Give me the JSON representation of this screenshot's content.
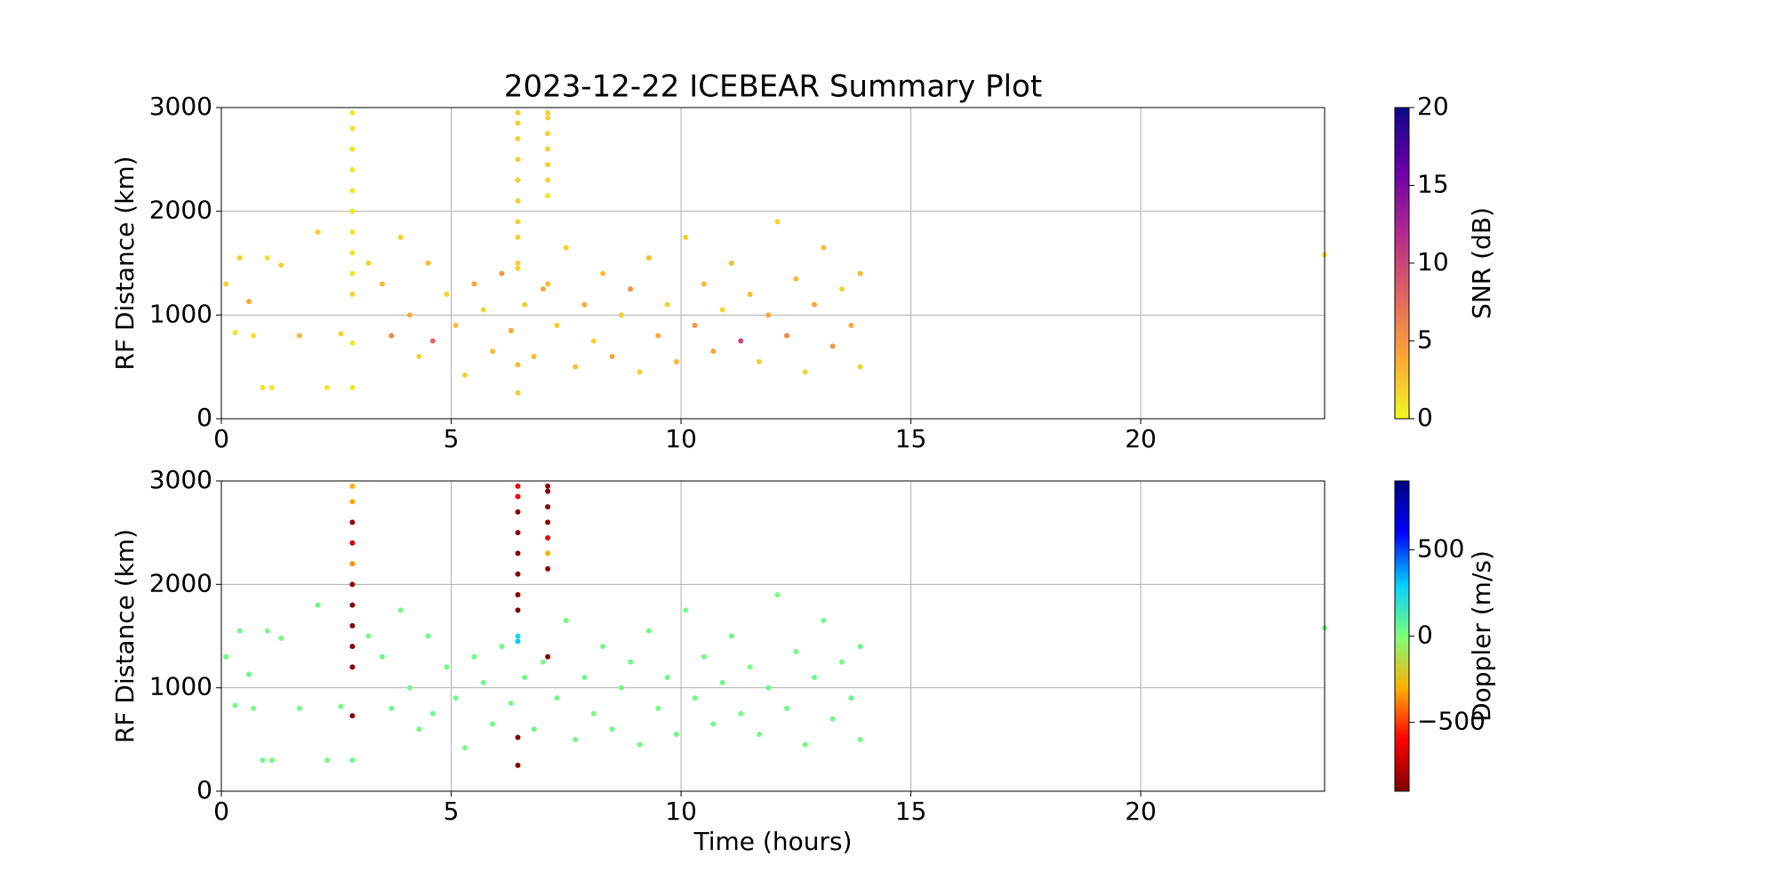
{
  "chart_data": [
    {
      "type": "scatter",
      "title": "2023-12-22 ICEBEAR Summary Plot",
      "y_label": "RF Distance (km)",
      "colorbar_label": "SNR (dB)",
      "x": [
        2.85,
        2.85,
        2.85,
        2.85,
        2.85,
        2.85,
        2.85,
        2.85,
        2.85,
        2.85,
        2.85,
        2.85,
        6.45,
        6.45,
        6.45,
        6.45,
        6.45,
        6.45,
        6.45,
        6.45,
        6.45,
        6.45,
        6.45,
        6.45,
        7.1,
        7.1,
        7.1,
        7.1,
        7.1,
        7.1,
        7.1,
        7.1,
        0.1,
        0.3,
        0.4,
        0.6,
        0.7,
        0.9,
        1.0,
        1.1,
        1.3,
        1.7,
        2.1,
        2.3,
        2.6,
        3.2,
        3.5,
        3.7,
        3.9,
        4.1,
        4.3,
        4.5,
        4.6,
        4.9,
        5.1,
        5.3,
        5.5,
        5.7,
        5.9,
        6.1,
        6.3,
        6.6,
        6.8,
        7.0,
        7.3,
        7.5,
        7.7,
        7.9,
        8.1,
        8.3,
        8.5,
        8.7,
        8.9,
        9.1,
        9.3,
        9.5,
        9.7,
        9.9,
        10.1,
        10.3,
        10.5,
        10.7,
        10.9,
        11.1,
        11.3,
        11.5,
        11.7,
        11.9,
        12.1,
        12.3,
        12.5,
        12.7,
        12.9,
        13.1,
        13.3,
        13.5,
        13.7,
        13.9,
        13.9,
        24
      ],
      "values": [
        2950,
        2800,
        2600,
        2400,
        2200,
        2000,
        1800,
        1600,
        1400,
        1200,
        730,
        300,
        2950,
        2850,
        2700,
        2500,
        2300,
        2100,
        1900,
        1750,
        1500,
        1450,
        520,
        250,
        2950,
        2900,
        2750,
        2600,
        2450,
        2300,
        2150,
        1300,
        1300,
        830,
        1550,
        1130,
        800,
        300,
        1550,
        300,
        1480,
        800,
        1800,
        300,
        820,
        1500,
        1300,
        800,
        1750,
        1000,
        600,
        1500,
        750,
        1200,
        900,
        420,
        1300,
        1050,
        650,
        1400,
        850,
        1100,
        600,
        1250,
        900,
        1650,
        500,
        1100,
        750,
        1400,
        600,
        1000,
        1250,
        450,
        1550,
        800,
        1100,
        550,
        1750,
        900,
        1300,
        650,
        1050,
        1500,
        750,
        1200,
        550,
        1000,
        1900,
        800,
        1350,
        450,
        1100,
        1650,
        700,
        1250,
        900,
        1400,
        500,
        1580
      ],
      "color_values": [
        1,
        1,
        1,
        1,
        1,
        1,
        1,
        1,
        1,
        2,
        1,
        1,
        2,
        2,
        2,
        2,
        2,
        2,
        2,
        2,
        2,
        2,
        3,
        2,
        2,
        2,
        2,
        2,
        2,
        2,
        1,
        3,
        2,
        1,
        2,
        4,
        1,
        1,
        1,
        1,
        2,
        3,
        2,
        1,
        2,
        2,
        3,
        6,
        2,
        4,
        2,
        3,
        8,
        2,
        3,
        2,
        4,
        2,
        3,
        5,
        4,
        2,
        3,
        4,
        2,
        2,
        3,
        4,
        2,
        3,
        4,
        2,
        5,
        2,
        3,
        4,
        2,
        3,
        2,
        5,
        3,
        4,
        2,
        3,
        10,
        3,
        2,
        4,
        2,
        6,
        3,
        2,
        4,
        3,
        5,
        2,
        4,
        3,
        2,
        1
      ],
      "clim": [
        0,
        20
      ],
      "cticks": [
        0,
        5,
        10,
        15,
        20
      ],
      "colormap": [
        "#f0f921",
        "#fca636",
        "#e16462",
        "#b12a90",
        "#6a00a8",
        "#0d0887"
      ],
      "xlim": [
        0,
        24
      ],
      "xticks": [
        0,
        5,
        10,
        15,
        20
      ],
      "ylim": [
        0,
        3000
      ],
      "yticks": [
        0,
        1000,
        2000,
        3000
      ],
      "grid": true
    },
    {
      "type": "scatter",
      "x_label": "Time (hours)",
      "y_label": "RF Distance (km)",
      "colorbar_label": "Doppler (m/s)",
      "x": [
        2.85,
        2.85,
        2.85,
        2.85,
        2.85,
        2.85,
        2.85,
        2.85,
        2.85,
        2.85,
        2.85,
        2.85,
        6.45,
        6.45,
        6.45,
        6.45,
        6.45,
        6.45,
        6.45,
        6.45,
        6.45,
        6.45,
        6.45,
        6.45,
        7.1,
        7.1,
        7.1,
        7.1,
        7.1,
        7.1,
        7.1,
        7.1,
        0.1,
        0.3,
        0.4,
        0.6,
        0.7,
        0.9,
        1.0,
        1.1,
        1.3,
        1.7,
        2.1,
        2.3,
        2.6,
        3.2,
        3.5,
        3.7,
        3.9,
        4.1,
        4.3,
        4.5,
        4.6,
        4.9,
        5.1,
        5.3,
        5.5,
        5.7,
        5.9,
        6.1,
        6.3,
        6.6,
        6.8,
        7.0,
        7.3,
        7.5,
        7.7,
        7.9,
        8.1,
        8.3,
        8.5,
        8.7,
        8.9,
        9.1,
        9.3,
        9.5,
        9.7,
        9.9,
        10.1,
        10.3,
        10.5,
        10.7,
        10.9,
        11.1,
        11.3,
        11.5,
        11.7,
        11.9,
        12.1,
        12.3,
        12.5,
        12.7,
        12.9,
        13.1,
        13.3,
        13.5,
        13.7,
        13.9,
        13.9,
        24
      ],
      "values": [
        2950,
        2800,
        2600,
        2400,
        2200,
        2000,
        1800,
        1600,
        1400,
        1200,
        730,
        300,
        2950,
        2850,
        2700,
        2500,
        2300,
        2100,
        1900,
        1750,
        1500,
        1450,
        520,
        250,
        2950,
        2900,
        2750,
        2600,
        2450,
        2300,
        2150,
        1300,
        1300,
        830,
        1550,
        1130,
        800,
        300,
        1550,
        300,
        1480,
        800,
        1800,
        300,
        820,
        1500,
        1300,
        800,
        1750,
        1000,
        600,
        1500,
        750,
        1200,
        900,
        420,
        1300,
        1050,
        650,
        1400,
        850,
        1100,
        600,
        1250,
        900,
        1650,
        500,
        1100,
        750,
        1400,
        600,
        1000,
        1250,
        450,
        1550,
        800,
        1100,
        550,
        1750,
        900,
        1300,
        650,
        1050,
        1500,
        750,
        1200,
        550,
        1000,
        1900,
        800,
        1350,
        450,
        1100,
        1650,
        700,
        1250,
        900,
        1400,
        500,
        1580
      ],
      "color_values": [
        -300,
        -320,
        -850,
        -700,
        -350,
        -850,
        -880,
        -880,
        -880,
        -880,
        -880,
        30,
        -600,
        -650,
        -880,
        -880,
        -880,
        -880,
        -880,
        -880,
        250,
        300,
        -880,
        -880,
        -880,
        -880,
        -880,
        -880,
        -650,
        -300,
        -880,
        -880,
        30,
        20,
        30,
        40,
        20,
        30,
        20,
        30,
        20,
        30,
        40,
        20,
        30,
        20,
        30,
        40,
        20,
        30,
        20,
        30,
        40,
        20,
        30,
        20,
        30,
        40,
        20,
        30,
        20,
        30,
        40,
        20,
        30,
        20,
        30,
        40,
        20,
        30,
        20,
        30,
        40,
        20,
        30,
        20,
        30,
        40,
        20,
        30,
        20,
        30,
        40,
        20,
        30,
        20,
        30,
        40,
        20,
        30,
        20,
        30,
        40,
        20,
        30,
        20,
        30,
        40,
        20,
        30
      ],
      "clim": [
        -900,
        900
      ],
      "cticks": [
        {
          "value": -500,
          "label": "−500"
        },
        0,
        500
      ],
      "colormap": [
        "#800000",
        "#ff0000",
        "#ffb000",
        "#7dff7a",
        "#00d0ff",
        "#0000ff",
        "#000080"
      ],
      "xlim": [
        0,
        24
      ],
      "xticks": [
        0,
        5,
        10,
        15,
        20
      ],
      "ylim": [
        0,
        3000
      ],
      "yticks": [
        0,
        1000,
        2000,
        3000
      ],
      "grid": true
    }
  ]
}
